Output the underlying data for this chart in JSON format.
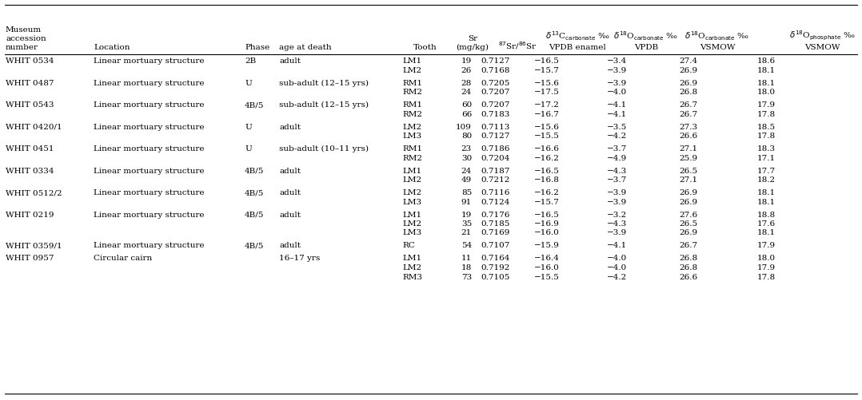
{
  "rows": [
    [
      "WHIT 0534",
      "Linear mortuary structure",
      "2B",
      "adult",
      "LM1",
      "19",
      "0.7127",
      "−16.5",
      "−3.4",
      "27.4",
      "18.6"
    ],
    [
      "",
      "",
      "",
      "",
      "LM2",
      "26",
      "0.7168",
      "−15.7",
      "−3.9",
      "26.9",
      "18.1"
    ],
    [
      "WHIT 0487",
      "Linear mortuary structure",
      "U",
      "sub-adult (12–15 yrs)",
      "RM1",
      "28",
      "0.7205",
      "−15.6",
      "−3.9",
      "26.9",
      "18.1"
    ],
    [
      "",
      "",
      "",
      "",
      "RM2",
      "24",
      "0.7207",
      "−17.5",
      "−4.0",
      "26.8",
      "18.0"
    ],
    [
      "WHIT 0543",
      "Linear mortuary structure",
      "4B/5",
      "sub-adult (12–15 yrs)",
      "RM1",
      "60",
      "0.7207",
      "−17.2",
      "−4.1",
      "26.7",
      "17.9"
    ],
    [
      "",
      "",
      "",
      "",
      "RM2",
      "66",
      "0.7183",
      "−16.7",
      "−4.1",
      "26.7",
      "17.8"
    ],
    [
      "WHIT 0420/1",
      "Linear mortuary structure",
      "U",
      "adult",
      "LM2",
      "109",
      "0.7113",
      "−15.6",
      "−3.5",
      "27.3",
      "18.5"
    ],
    [
      "",
      "",
      "",
      "",
      "LM3",
      "80",
      "0.7127",
      "−15.5",
      "−4.2",
      "26.6",
      "17.8"
    ],
    [
      "WHIT 0451",
      "Linear mortuary structure",
      "U",
      "sub-adult (10–11 yrs)",
      "RM1",
      "23",
      "0.7186",
      "−16.6",
      "−3.7",
      "27.1",
      "18.3"
    ],
    [
      "",
      "",
      "",
      "",
      "RM2",
      "30",
      "0.7204",
      "−16.2",
      "−4.9",
      "25.9",
      "17.1"
    ],
    [
      "WHIT 0334",
      "Linear mortuary structure",
      "4B/5",
      "adult",
      "LM1",
      "24",
      "0.7187",
      "−16.5",
      "−4.3",
      "26.5",
      "17.7"
    ],
    [
      "",
      "",
      "",
      "",
      "LM2",
      "49",
      "0.7212",
      "−16.8",
      "−3.7",
      "27.1",
      "18.2"
    ],
    [
      "WHIT 0512/2",
      "Linear mortuary structure",
      "4B/5",
      "adult",
      "LM2",
      "85",
      "0.7116",
      "−16.2",
      "−3.9",
      "26.9",
      "18.1"
    ],
    [
      "",
      "",
      "",
      "",
      "LM3",
      "91",
      "0.7124",
      "−15.7",
      "−3.9",
      "26.9",
      "18.1"
    ],
    [
      "WHIT 0219",
      "Linear mortuary structure",
      "4B/5",
      "adult",
      "LM1",
      "19",
      "0.7176",
      "−16.5",
      "−3.2",
      "27.6",
      "18.8"
    ],
    [
      "",
      "",
      "",
      "",
      "LM2",
      "35",
      "0.7185",
      "−16.9",
      "−4.3",
      "26.5",
      "17.6"
    ],
    [
      "",
      "",
      "",
      "",
      "LM3",
      "21",
      "0.7169",
      "−16.0",
      "−3.9",
      "26.9",
      "18.1"
    ],
    [
      "WHIT 0359/1",
      "Linear mortuary structure",
      "4B/5",
      "adult",
      "RC",
      "54",
      "0.7107",
      "−15.9",
      "−4.1",
      "26.7",
      "17.9"
    ],
    [
      "WHIT 0957",
      "Circular cairn",
      "",
      "16–17 yrs",
      "LM1",
      "11",
      "0.7164",
      "−16.4",
      "−4.0",
      "26.8",
      "18.0"
    ],
    [
      "",
      "",
      "",
      "",
      "LM2",
      "18",
      "0.7192",
      "−16.0",
      "−4.0",
      "26.8",
      "17.9"
    ],
    [
      "",
      "",
      "",
      "",
      "RM3",
      "73",
      "0.7105",
      "−15.5",
      "−4.2",
      "26.6",
      "17.8"
    ]
  ],
  "group_first_rows": [
    0,
    2,
    4,
    6,
    8,
    10,
    12,
    14,
    17,
    18
  ],
  "background_color": "#ffffff",
  "font_size": 7.5,
  "header_fs": 7.5
}
